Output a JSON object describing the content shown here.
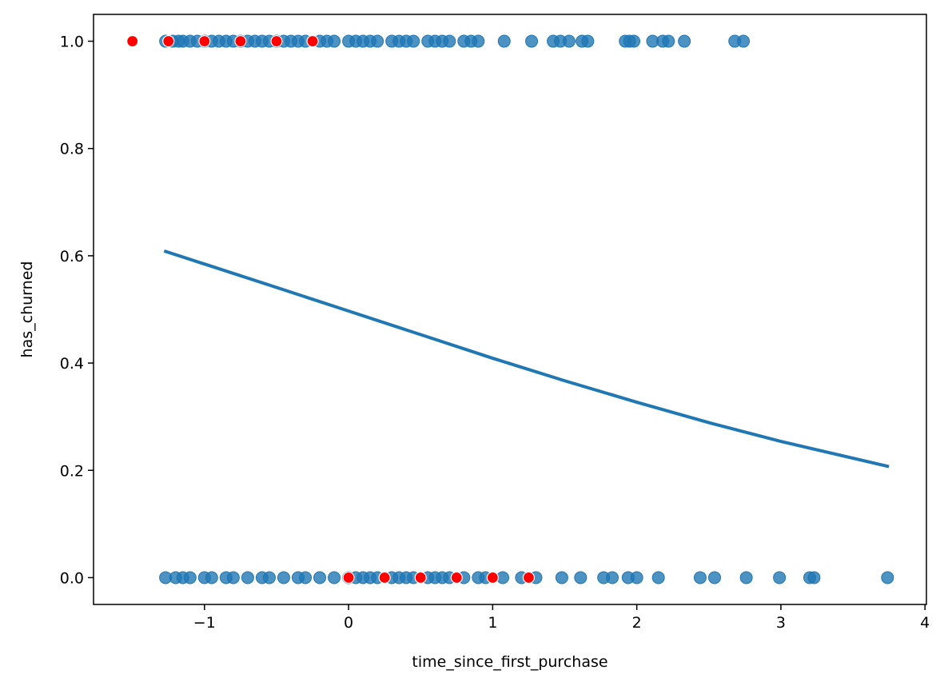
{
  "chart_data": {
    "type": "scatter",
    "xlabel": "time_since_first_purchase",
    "ylabel": "has_churned",
    "xlim": [
      -1.77,
      4.01
    ],
    "ylim": [
      -0.05,
      1.05
    ],
    "xticks": [
      {
        "value": -1,
        "label": "−1"
      },
      0,
      1,
      2,
      3,
      4
    ],
    "yticks": [
      {
        "value": 0,
        "label": "0.0"
      },
      0.2,
      0.4,
      0.6,
      0.8,
      {
        "value": 1,
        "label": "1.0"
      }
    ],
    "series": [
      {
        "type": "scatter",
        "color": "#1f77b4",
        "x": [
          -1.27,
          -1.22,
          -1.18,
          -1.15,
          -1.1,
          -1.05,
          -1.0,
          -0.95,
          -0.9,
          -0.85,
          -0.8,
          -0.75,
          -0.7,
          -0.65,
          -0.6,
          -0.55,
          -0.5,
          -0.45,
          -0.4,
          -0.35,
          -0.3,
          -0.2,
          -0.15,
          -0.1,
          0,
          0.05,
          0.1,
          0.15,
          0.2,
          0.3,
          0.35,
          0.4,
          0.45,
          0.55,
          0.6,
          0.65,
          0.7,
          0.8,
          0.85,
          0.9,
          1.08,
          1.27,
          1.42,
          1.47,
          1.53,
          1.62,
          1.66,
          1.92,
          1.95,
          1.98,
          2.11,
          2.18,
          2.22,
          2.33,
          2.68,
          2.74
        ],
        "values": [
          1,
          1,
          1,
          1,
          1,
          1,
          1,
          1,
          1,
          1,
          1,
          1,
          1,
          1,
          1,
          1,
          1,
          1,
          1,
          1,
          1,
          1,
          1,
          1,
          1,
          1,
          1,
          1,
          1,
          1,
          1,
          1,
          1,
          1,
          1,
          1,
          1,
          1,
          1,
          1,
          1,
          1,
          1,
          1,
          1,
          1,
          1,
          1,
          1,
          1,
          1,
          1,
          1,
          1,
          1,
          1
        ]
      },
      {
        "type": "scatter",
        "color": "#1f77b4",
        "x": [
          -1.27,
          -1.2,
          -1.15,
          -1.1,
          -1.0,
          -0.95,
          -0.85,
          -0.8,
          -0.7,
          -0.6,
          -0.55,
          -0.45,
          -0.35,
          -0.3,
          -0.2,
          -0.1,
          0,
          0.05,
          0.1,
          0.15,
          0.2,
          0.3,
          0.35,
          0.4,
          0.45,
          0.55,
          0.6,
          0.65,
          0.7,
          0.8,
          0.9,
          0.95,
          1.07,
          1.2,
          1.3,
          1.48,
          1.61,
          1.77,
          1.83,
          1.94,
          2.0,
          2.15,
          2.44,
          2.54,
          2.76,
          2.99,
          3.2,
          3.23,
          3.74
        ],
        "values": [
          0,
          0,
          0,
          0,
          0,
          0,
          0,
          0,
          0,
          0,
          0,
          0,
          0,
          0,
          0,
          0,
          0,
          0,
          0,
          0,
          0,
          0,
          0,
          0,
          0,
          0,
          0,
          0,
          0,
          0,
          0,
          0,
          0,
          0,
          0,
          0,
          0,
          0,
          0,
          0,
          0,
          0,
          0,
          0,
          0,
          0,
          0,
          0,
          0
        ]
      },
      {
        "type": "line",
        "color": "#1f77b4",
        "x": [
          -1.28,
          -0.5,
          0,
          0.5,
          1,
          1.5,
          2,
          2.5,
          3,
          3.75
        ],
        "values": [
          0.609,
          0.541,
          0.497,
          0.453,
          0.409,
          0.367,
          0.327,
          0.289,
          0.254,
          0.207
        ]
      },
      {
        "type": "point",
        "color": "#ff0000",
        "x": [
          -1.5,
          -1.25,
          -1,
          -0.75,
          -0.5,
          -0.25,
          0,
          0.25,
          0.5,
          0.75,
          1,
          1.25
        ],
        "values": [
          1,
          1,
          1,
          1,
          1,
          1,
          0,
          0,
          0,
          0,
          0,
          0
        ]
      }
    ]
  }
}
